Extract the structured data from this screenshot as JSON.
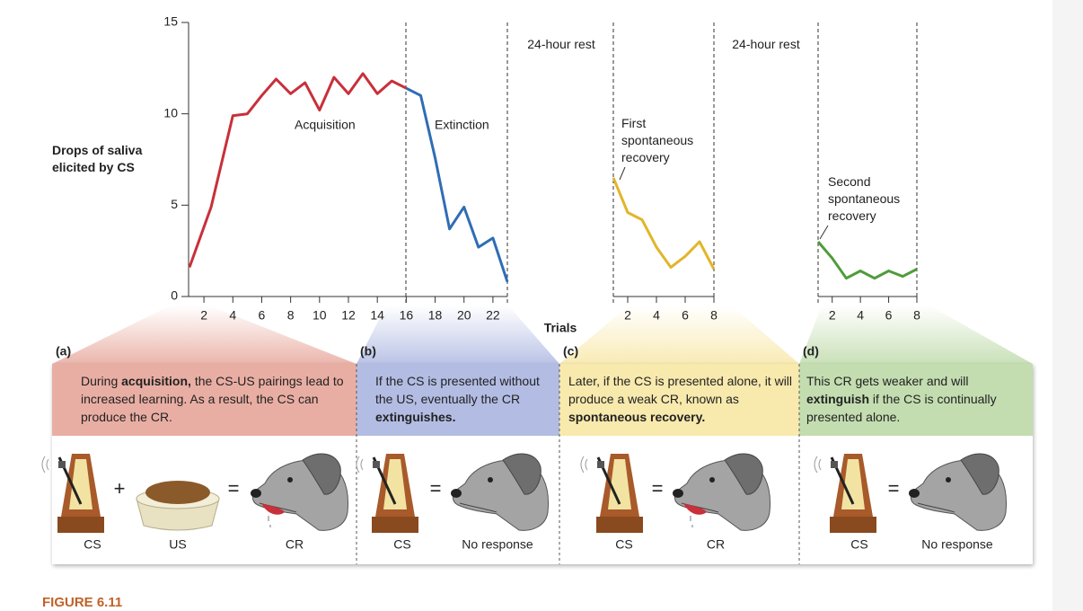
{
  "chart_data": [
    {
      "type": "line",
      "y_label": "Drops of saliva elicited by CS",
      "x_label": "Trials",
      "ylim": [
        0,
        15
      ],
      "yticks": [
        0,
        5,
        10,
        15
      ],
      "xlim": [
        1,
        23
      ],
      "xticks": [
        2,
        4,
        6,
        8,
        10,
        12,
        14,
        16,
        18,
        20,
        22
      ],
      "series": [
        {
          "name": "Acquisition",
          "color": "#c8303a",
          "x": [
            1,
            2.5,
            4,
            5,
            6,
            7,
            8,
            9,
            10,
            11,
            12,
            13,
            14,
            15,
            16
          ],
          "values": [
            1.6,
            4.9,
            9.9,
            10.0,
            11.0,
            11.9,
            11.1,
            11.7,
            10.2,
            12.0,
            11.1,
            12.2,
            11.1,
            11.8,
            11.4
          ]
        },
        {
          "name": "Extinction",
          "color": "#2f6db5",
          "x": [
            16,
            17,
            18,
            19,
            20,
            21,
            22,
            23
          ],
          "values": [
            11.4,
            11.0,
            7.6,
            3.7,
            4.9,
            2.7,
            3.2,
            0.8
          ]
        }
      ]
    },
    {
      "type": "line",
      "title": "24-hour rest",
      "ylim": [
        0,
        15
      ],
      "xlim": [
        1,
        8
      ],
      "xticks": [
        2,
        4,
        6,
        8
      ],
      "series": [
        {
          "name": "First spontaneous recovery",
          "color": "#e2b52b",
          "x": [
            1,
            2,
            3,
            4,
            5,
            6,
            7,
            8
          ],
          "values": [
            6.5,
            4.6,
            4.2,
            2.7,
            1.6,
            2.2,
            3.0,
            1.5
          ]
        }
      ]
    },
    {
      "type": "line",
      "title": "24-hour rest",
      "ylim": [
        0,
        15
      ],
      "xlim": [
        1,
        8
      ],
      "xticks": [
        2,
        4,
        6,
        8
      ],
      "series": [
        {
          "name": "Second spontaneous recovery",
          "color": "#4f9c3a",
          "x": [
            1,
            2,
            3,
            4,
            5,
            6,
            7,
            8
          ],
          "values": [
            3.0,
            2.1,
            1.0,
            1.4,
            1.0,
            1.4,
            1.1,
            1.5
          ]
        }
      ]
    }
  ],
  "panels": [
    {
      "label": "(a)",
      "color": "#e9aea3",
      "text": [
        {
          "text": "During "
        },
        {
          "text": "acquisition,",
          "bold": true
        },
        {
          "text": " the CS-US pairings lead to increased learning. As a result, the CS can produce the CR."
        }
      ],
      "operators": [
        "+",
        "="
      ],
      "captions": [
        "CS",
        "US",
        "CR"
      ]
    },
    {
      "label": "(b)",
      "color": "#b3bde3",
      "text": [
        {
          "text": "If the CS is presented without the US, eventually the CR "
        },
        {
          "text": "extinguishes.",
          "bold": true
        }
      ],
      "operators": [
        "="
      ],
      "captions": [
        "CS",
        "No response"
      ]
    },
    {
      "label": "(c)",
      "color": "#f8e9ad",
      "text": [
        {
          "text": "Later, if the CS is presented alone, it will produce a weak CR, known as "
        },
        {
          "text": "spontaneous recovery.",
          "bold": true
        }
      ],
      "operators": [
        "="
      ],
      "captions": [
        "CS",
        "CR"
      ]
    },
    {
      "label": "(d)",
      "color": "#c3ddb0",
      "text": [
        {
          "text": "This CR gets weaker and will "
        },
        {
          "text": "extinguish",
          "bold": true
        },
        {
          "text": " if the CS is continually presented alone."
        }
      ],
      "operators": [
        "="
      ],
      "captions": [
        "CS",
        "No response"
      ]
    }
  ],
  "figure_label": "FIGURE 6.11"
}
